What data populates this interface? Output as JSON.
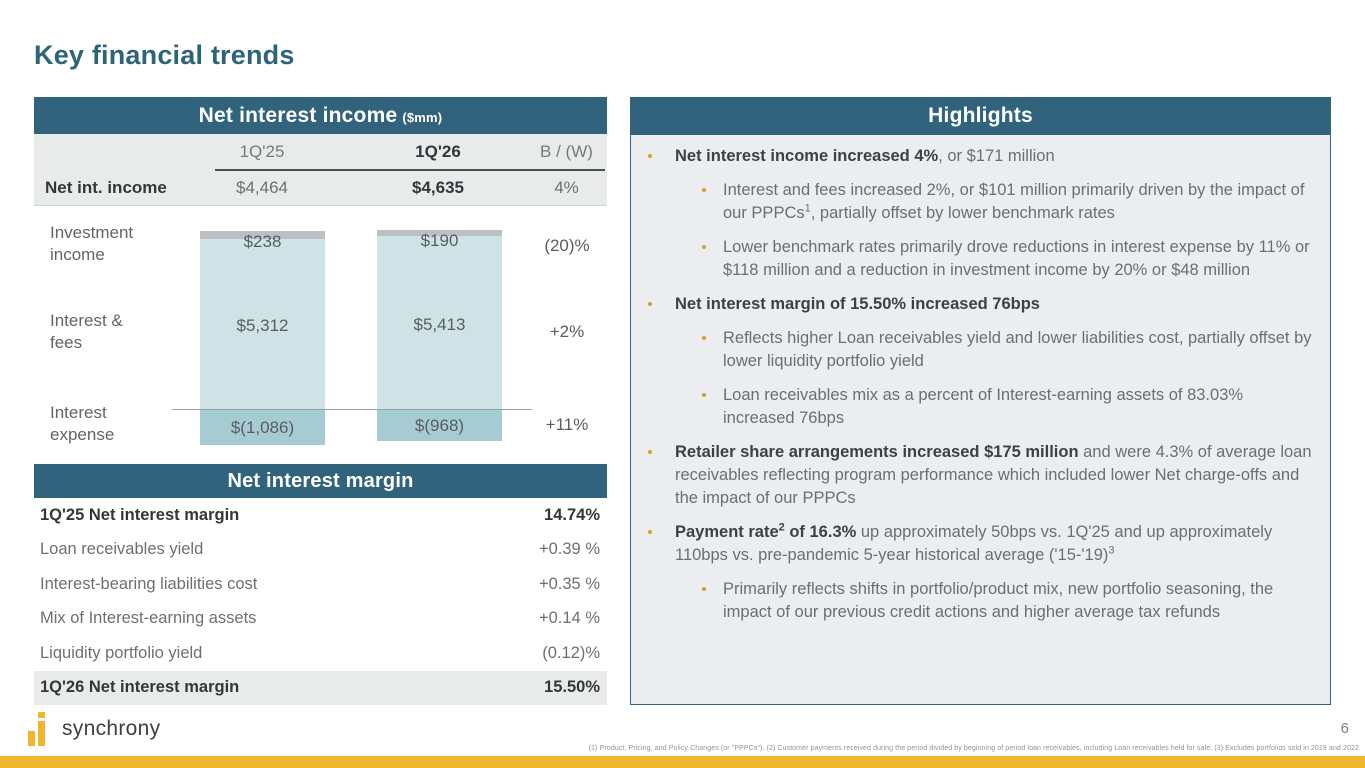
{
  "page": {
    "title": "Key financial trends",
    "page_number": "6",
    "brand": "synchrony",
    "footnote": "(1) Product, Pricing, and Policy Changes (or \"PPPCs\").  (2) Customer payments received during the period divided by beginning of period loan receivables, including Loan receivables held for sale.  (3) Excludes portfolios sold in 2019 and 2022.",
    "accent_teal": "#31647c",
    "accent_gold": "#f2b62f"
  },
  "nii_table": {
    "title": "Net interest income",
    "title_unit": "($mm)",
    "columns": [
      "1Q'25",
      "1Q'26",
      "B / (W)"
    ],
    "row_label": "Net int. income",
    "values": [
      "$4,464",
      "$4,635",
      "4%"
    ]
  },
  "chart_data": {
    "type": "bar",
    "stacked": true,
    "unit": "$mm",
    "categories": [
      "1Q'25",
      "1Q'26"
    ],
    "series": [
      {
        "name": "Investment income",
        "values": [
          238,
          190
        ],
        "labels": [
          "$238",
          "$190"
        ],
        "change": "(20)%",
        "color": "#bcc0c2"
      },
      {
        "name": "Interest & fees",
        "values": [
          5312,
          5413
        ],
        "labels": [
          "$5,312",
          "$5,413"
        ],
        "change": "+2%",
        "color": "#cfe2e5"
      },
      {
        "name": "Interest expense",
        "values": [
          -1086,
          -968
        ],
        "labels": [
          "$(1,086)",
          "$(968)"
        ],
        "change": "+11%",
        "color": "#a7cbd2"
      }
    ],
    "row_labels": [
      [
        "Investment",
        "income"
      ],
      [
        "Interest &",
        "fees"
      ],
      [
        "Interest",
        "expense"
      ]
    ],
    "legend_position": "left-row-labels",
    "grid": false
  },
  "nim_table": {
    "title": "Net interest margin",
    "rows": [
      {
        "label": "1Q'25 Net interest margin",
        "value": "14.74%",
        "bold": true,
        "shaded": false
      },
      {
        "label": "Loan receivables yield",
        "value": "+0.39 %",
        "bold": false,
        "shaded": false
      },
      {
        "label": "Interest-bearing liabilities cost",
        "value": "+0.35 %",
        "bold": false,
        "shaded": false
      },
      {
        "label": "Mix of Interest-earning assets",
        "value": "+0.14 %",
        "bold": false,
        "shaded": false
      },
      {
        "label": "Liquidity portfolio yield",
        "value": "(0.12)%",
        "bold": false,
        "shaded": false
      },
      {
        "label": "1Q'26 Net interest margin",
        "value": "15.50%",
        "bold": true,
        "shaded": true
      }
    ]
  },
  "highlights": {
    "title": "Highlights",
    "bullet_color": "#d2a32a",
    "items": [
      {
        "level": 1,
        "segments": [
          {
            "t": "Net interest income increased 4%",
            "b": true
          },
          {
            "t": ", or $171 million"
          }
        ]
      },
      {
        "level": 2,
        "segments": [
          {
            "t": "Interest and fees increased 2%, or $101 million primarily driven by the impact of our PPPCs"
          },
          {
            "t": "1",
            "sup": true
          },
          {
            "t": ", partially offset by lower benchmark rates"
          }
        ]
      },
      {
        "level": 2,
        "segments": [
          {
            "t": "Lower benchmark rates primarily drove reductions in interest expense by 11% or $118 million and a reduction in investment income by 20% or $48 million"
          }
        ]
      },
      {
        "level": 1,
        "segments": [
          {
            "t": "Net interest margin of 15.50% increased 76bps",
            "b": true
          }
        ]
      },
      {
        "level": 2,
        "segments": [
          {
            "t": "Reflects higher Loan receivables yield and lower liabilities cost, partially offset by lower liquidity portfolio yield"
          }
        ]
      },
      {
        "level": 2,
        "segments": [
          {
            "t": "Loan receivables mix as a percent of Interest-earning assets of 83.03% increased 76bps"
          }
        ]
      },
      {
        "level": 1,
        "segments": [
          {
            "t": "Retailer share arrangements increased $175 million",
            "b": true
          },
          {
            "t": " and were 4.3% of average loan receivables reflecting program performance which included lower Net charge-offs and the impact of our PPPCs"
          }
        ]
      },
      {
        "level": 1,
        "segments": [
          {
            "t": "Payment rate",
            "b": true
          },
          {
            "t": "2",
            "sup": true,
            "b": true
          },
          {
            "t": " of 16.3%",
            "b": true
          },
          {
            "t": " up approximately 50bps vs. 1Q'25 and up approximately 110bps vs. pre-pandemic 5-year historical average ('15-'19)"
          },
          {
            "t": "3",
            "sup": true
          }
        ]
      },
      {
        "level": 2,
        "segments": [
          {
            "t": "Primarily reflects shifts in portfolio/product mix, new portfolio seasoning, the impact of our previous credit actions and higher average tax refunds"
          }
        ]
      }
    ]
  }
}
